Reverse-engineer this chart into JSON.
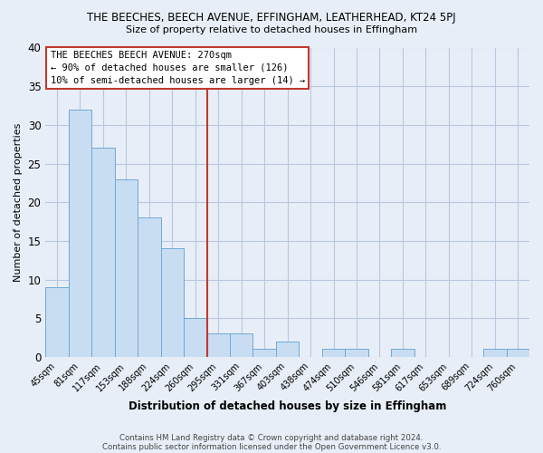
{
  "title": "THE BEECHES, BEECH AVENUE, EFFINGHAM, LEATHERHEAD, KT24 5PJ",
  "subtitle": "Size of property relative to detached houses in Effingham",
  "xlabel": "Distribution of detached houses by size in Effingham",
  "ylabel": "Number of detached properties",
  "bar_color": "#c9ddf2",
  "bar_edge_color": "#6fa8d6",
  "categories": [
    "45sqm",
    "81sqm",
    "117sqm",
    "153sqm",
    "188sqm",
    "224sqm",
    "260sqm",
    "295sqm",
    "331sqm",
    "367sqm",
    "403sqm",
    "438sqm",
    "474sqm",
    "510sqm",
    "546sqm",
    "581sqm",
    "617sqm",
    "653sqm",
    "689sqm",
    "724sqm",
    "760sqm"
  ],
  "values": [
    9,
    32,
    27,
    23,
    18,
    14,
    5,
    3,
    3,
    1,
    2,
    0,
    1,
    1,
    0,
    1,
    0,
    0,
    0,
    1,
    1
  ],
  "ylim": [
    0,
    40
  ],
  "vline_x": 6.5,
  "vline_color": "#c0392b",
  "annotation_text": "THE BEECHES BEECH AVENUE: 270sqm\n← 90% of detached houses are smaller (126)\n10% of semi-detached houses are larger (14) →",
  "annotation_box_edge": "#c0392b",
  "footer1": "Contains HM Land Registry data © Crown copyright and database right 2024.",
  "footer2": "Contains public sector information licensed under the Open Government Licence v3.0.",
  "bg_color": "#e8eef7",
  "plot_bg_color": "#e8eef7",
  "grid_color": "#b8c8e0"
}
